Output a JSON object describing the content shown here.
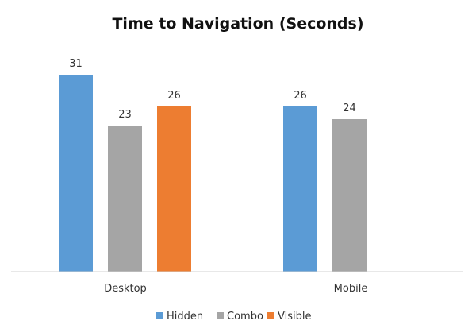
{
  "chart_data": {
    "type": "bar",
    "title": "Time to Navigation (Seconds)",
    "xlabel": "",
    "ylabel": "",
    "categories": [
      "Desktop",
      "Mobile"
    ],
    "series": [
      {
        "name": "Hidden",
        "color": "#5b9bd5",
        "values": [
          31,
          26
        ]
      },
      {
        "name": "Combo",
        "color": "#a5a5a5",
        "values": [
          23,
          24
        ]
      },
      {
        "name": "Visible",
        "color": "#ed7d31",
        "values": [
          26,
          null
        ]
      }
    ],
    "ylim": [
      0,
      35
    ],
    "grid": false,
    "legend": "bottom",
    "data_labels": true
  }
}
